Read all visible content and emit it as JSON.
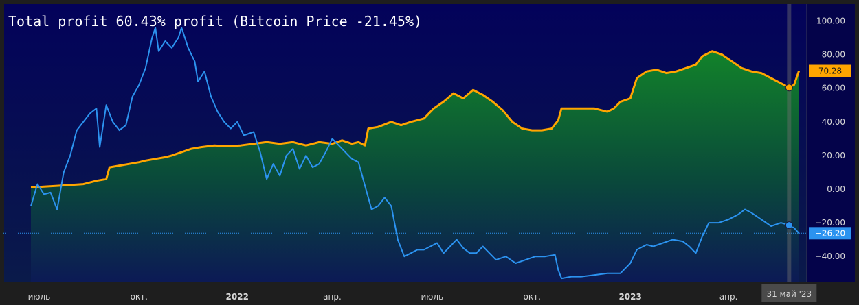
{
  "chart_data": {
    "type": "line",
    "title": "Total profit 60.43% profit (Bitcoin Price -21.45%)",
    "ylim": [
      -55,
      110
    ],
    "yticks": [
      100,
      80,
      60,
      40,
      20,
      0,
      -20,
      -40
    ],
    "ytick_labels": [
      "100.00",
      "80.00",
      "60.00",
      "40.00",
      "20.00",
      "0.00",
      "−20.00",
      "−40.00"
    ],
    "x_range": [
      0,
      23.5
    ],
    "xticks": [
      {
        "x": 0.25,
        "label": "июль",
        "bold": false
      },
      {
        "x": 3.3,
        "label": "окт.",
        "bold": false
      },
      {
        "x": 6.3,
        "label": "2022",
        "bold": true
      },
      {
        "x": 9.2,
        "label": "апр.",
        "bold": false
      },
      {
        "x": 12.25,
        "label": "июль",
        "bold": false
      },
      {
        "x": 15.3,
        "label": "окт.",
        "bold": false
      },
      {
        "x": 18.3,
        "label": "2023",
        "bold": true
      },
      {
        "x": 21.3,
        "label": "апр.",
        "bold": false
      }
    ],
    "crosshair": {
      "x": 23.15,
      "label": "31 май '23"
    },
    "grid": false,
    "series": [
      {
        "name": "Total profit",
        "color": "#ffa500",
        "fill": "gradient-green",
        "last_value_label": "70.28",
        "marker_value": 60.4,
        "points": [
          [
            0,
            1
          ],
          [
            0.4,
            1.5
          ],
          [
            0.8,
            2
          ],
          [
            1.2,
            2.5
          ],
          [
            1.6,
            3
          ],
          [
            2.0,
            5
          ],
          [
            2.3,
            6
          ],
          [
            2.4,
            13
          ],
          [
            2.7,
            14
          ],
          [
            3.0,
            15
          ],
          [
            3.3,
            16
          ],
          [
            3.5,
            17
          ],
          [
            3.8,
            18
          ],
          [
            4.1,
            19
          ],
          [
            4.3,
            20
          ],
          [
            4.6,
            22
          ],
          [
            4.9,
            24
          ],
          [
            5.2,
            25
          ],
          [
            5.6,
            26
          ],
          [
            6.0,
            25.5
          ],
          [
            6.4,
            26
          ],
          [
            6.8,
            27
          ],
          [
            7.2,
            28
          ],
          [
            7.6,
            27
          ],
          [
            8.0,
            28
          ],
          [
            8.4,
            26
          ],
          [
            8.8,
            28
          ],
          [
            9.2,
            27
          ],
          [
            9.5,
            29
          ],
          [
            9.8,
            27
          ],
          [
            10.0,
            28
          ],
          [
            10.2,
            26
          ],
          [
            10.3,
            36
          ],
          [
            10.6,
            37
          ],
          [
            11.0,
            40
          ],
          [
            11.3,
            38
          ],
          [
            11.6,
            40
          ],
          [
            12.0,
            42
          ],
          [
            12.3,
            48
          ],
          [
            12.6,
            52
          ],
          [
            12.9,
            57
          ],
          [
            13.2,
            54
          ],
          [
            13.5,
            59
          ],
          [
            13.8,
            56
          ],
          [
            14.1,
            52
          ],
          [
            14.4,
            47
          ],
          [
            14.7,
            40
          ],
          [
            15.0,
            36
          ],
          [
            15.3,
            35
          ],
          [
            15.6,
            35
          ],
          [
            15.9,
            36
          ],
          [
            16.1,
            41
          ],
          [
            16.2,
            48
          ],
          [
            16.7,
            48
          ],
          [
            17.2,
            48
          ],
          [
            17.6,
            46
          ],
          [
            17.8,
            48
          ],
          [
            18.0,
            52
          ],
          [
            18.3,
            54
          ],
          [
            18.5,
            66
          ],
          [
            18.8,
            70
          ],
          [
            19.1,
            71
          ],
          [
            19.4,
            69
          ],
          [
            19.7,
            70
          ],
          [
            20.0,
            72
          ],
          [
            20.3,
            74
          ],
          [
            20.5,
            79
          ],
          [
            20.8,
            82
          ],
          [
            21.1,
            80
          ],
          [
            21.4,
            76
          ],
          [
            21.7,
            72
          ],
          [
            22.0,
            70
          ],
          [
            22.3,
            69
          ],
          [
            22.6,
            66
          ],
          [
            22.9,
            63
          ],
          [
            23.15,
            60.4
          ],
          [
            23.3,
            62
          ],
          [
            23.45,
            70.28
          ]
        ]
      },
      {
        "name": "Bitcoin Price",
        "color": "#2c93f0",
        "last_value_label": "−26.20",
        "marker_value": -21.45,
        "points": [
          [
            0,
            -10
          ],
          [
            0.2,
            3
          ],
          [
            0.4,
            -3
          ],
          [
            0.6,
            -2
          ],
          [
            0.8,
            -12
          ],
          [
            1.0,
            10
          ],
          [
            1.2,
            20
          ],
          [
            1.4,
            35
          ],
          [
            1.6,
            40
          ],
          [
            1.8,
            45
          ],
          [
            2.0,
            48
          ],
          [
            2.1,
            25
          ],
          [
            2.3,
            50
          ],
          [
            2.5,
            40
          ],
          [
            2.7,
            35
          ],
          [
            2.9,
            38
          ],
          [
            3.1,
            55
          ],
          [
            3.3,
            62
          ],
          [
            3.5,
            72
          ],
          [
            3.7,
            90
          ],
          [
            3.8,
            96
          ],
          [
            3.9,
            82
          ],
          [
            4.1,
            88
          ],
          [
            4.3,
            84
          ],
          [
            4.5,
            90
          ],
          [
            4.6,
            96
          ],
          [
            4.8,
            84
          ],
          [
            5.0,
            76
          ],
          [
            5.1,
            64
          ],
          [
            5.3,
            70
          ],
          [
            5.5,
            55
          ],
          [
            5.7,
            46
          ],
          [
            5.9,
            40
          ],
          [
            6.1,
            36
          ],
          [
            6.3,
            40
          ],
          [
            6.5,
            32
          ],
          [
            6.8,
            34
          ],
          [
            7.0,
            22
          ],
          [
            7.2,
            6
          ],
          [
            7.4,
            15
          ],
          [
            7.6,
            8
          ],
          [
            7.8,
            20
          ],
          [
            8.0,
            24
          ],
          [
            8.2,
            12
          ],
          [
            8.4,
            20
          ],
          [
            8.6,
            13
          ],
          [
            8.8,
            15
          ],
          [
            9.0,
            22
          ],
          [
            9.2,
            30
          ],
          [
            9.4,
            26
          ],
          [
            9.6,
            22
          ],
          [
            9.8,
            18
          ],
          [
            10.0,
            16
          ],
          [
            10.2,
            2
          ],
          [
            10.4,
            -12
          ],
          [
            10.6,
            -10
          ],
          [
            10.8,
            -5
          ],
          [
            11.0,
            -10
          ],
          [
            11.2,
            -30
          ],
          [
            11.4,
            -40
          ],
          [
            11.6,
            -38
          ],
          [
            11.8,
            -36
          ],
          [
            12.0,
            -36
          ],
          [
            12.2,
            -34
          ],
          [
            12.4,
            -32
          ],
          [
            12.6,
            -38
          ],
          [
            12.8,
            -34
          ],
          [
            13.0,
            -30
          ],
          [
            13.2,
            -35
          ],
          [
            13.4,
            -38
          ],
          [
            13.6,
            -38
          ],
          [
            13.8,
            -34
          ],
          [
            14.0,
            -38
          ],
          [
            14.2,
            -42
          ],
          [
            14.5,
            -40
          ],
          [
            14.8,
            -44
          ],
          [
            15.1,
            -42
          ],
          [
            15.4,
            -40
          ],
          [
            15.7,
            -40
          ],
          [
            16.0,
            -39
          ],
          [
            16.1,
            -48
          ],
          [
            16.2,
            -53
          ],
          [
            16.5,
            -52
          ],
          [
            16.8,
            -52
          ],
          [
            17.2,
            -51
          ],
          [
            17.6,
            -50
          ],
          [
            18.0,
            -50
          ],
          [
            18.3,
            -44
          ],
          [
            18.5,
            -36
          ],
          [
            18.8,
            -33
          ],
          [
            19.0,
            -34
          ],
          [
            19.3,
            -32
          ],
          [
            19.6,
            -30
          ],
          [
            19.9,
            -31
          ],
          [
            20.1,
            -34
          ],
          [
            20.3,
            -38
          ],
          [
            20.5,
            -28
          ],
          [
            20.7,
            -20
          ],
          [
            21.0,
            -20
          ],
          [
            21.3,
            -18
          ],
          [
            21.6,
            -15
          ],
          [
            21.8,
            -12
          ],
          [
            22.0,
            -14
          ],
          [
            22.3,
            -18
          ],
          [
            22.6,
            -22
          ],
          [
            22.9,
            -20
          ],
          [
            23.15,
            -21.45
          ],
          [
            23.3,
            -23
          ],
          [
            23.45,
            -26.2
          ]
        ]
      }
    ]
  }
}
